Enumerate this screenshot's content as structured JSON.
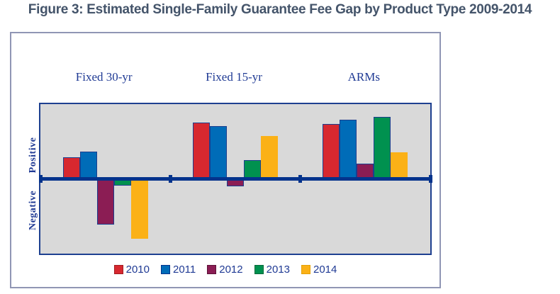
{
  "colors": {
    "title_text": "#44546A",
    "navy_text": "#1F3A94",
    "axis_line": "#04338C",
    "plot_border": "#1E4090",
    "plot_background": "#D9D9D9",
    "panel_border": "#9096B4"
  },
  "chart_data": {
    "type": "bar",
    "title": "Figure 3: Estimated Single-Family Guarantee Fee Gap by Product Type 2009-2014",
    "categories": [
      "Fixed 30-yr",
      "Fixed 15-yr",
      "ARMs"
    ],
    "series": [
      {
        "name": "2010",
        "color": "#D7282F",
        "border": "#1B3F8F",
        "swatch_border": "#A21C22",
        "values": [
          31,
          80,
          78
        ]
      },
      {
        "name": "2011",
        "color": "#006CB8",
        "border": "#1B3F8F",
        "swatch_border": "#04338C",
        "values": [
          39,
          75,
          84
        ]
      },
      {
        "name": "2012",
        "color": "#8B1D54",
        "border": "#1B3F8F",
        "swatch_border": "#5C1238",
        "values": [
          -64,
          -10,
          22
        ]
      },
      {
        "name": "2013",
        "color": "#00914F",
        "border": "#1B3F8F",
        "swatch_border": "#046A3A",
        "values": [
          -9,
          27,
          88
        ]
      },
      {
        "name": "2014",
        "color": "#FBB117",
        "border": "#FBB117",
        "swatch_border": "#E3A008",
        "values": [
          -84,
          61,
          38
        ]
      }
    ],
    "ylabel_positive": "Positive",
    "ylabel_negative": "Negative",
    "value_units": "relative magnitude (vertical axis unlabeled, zero line shown)",
    "grid": false,
    "legend_position": "bottom",
    "legend_labels": [
      "2010",
      "2011",
      "2012",
      "2013",
      "2014"
    ]
  }
}
